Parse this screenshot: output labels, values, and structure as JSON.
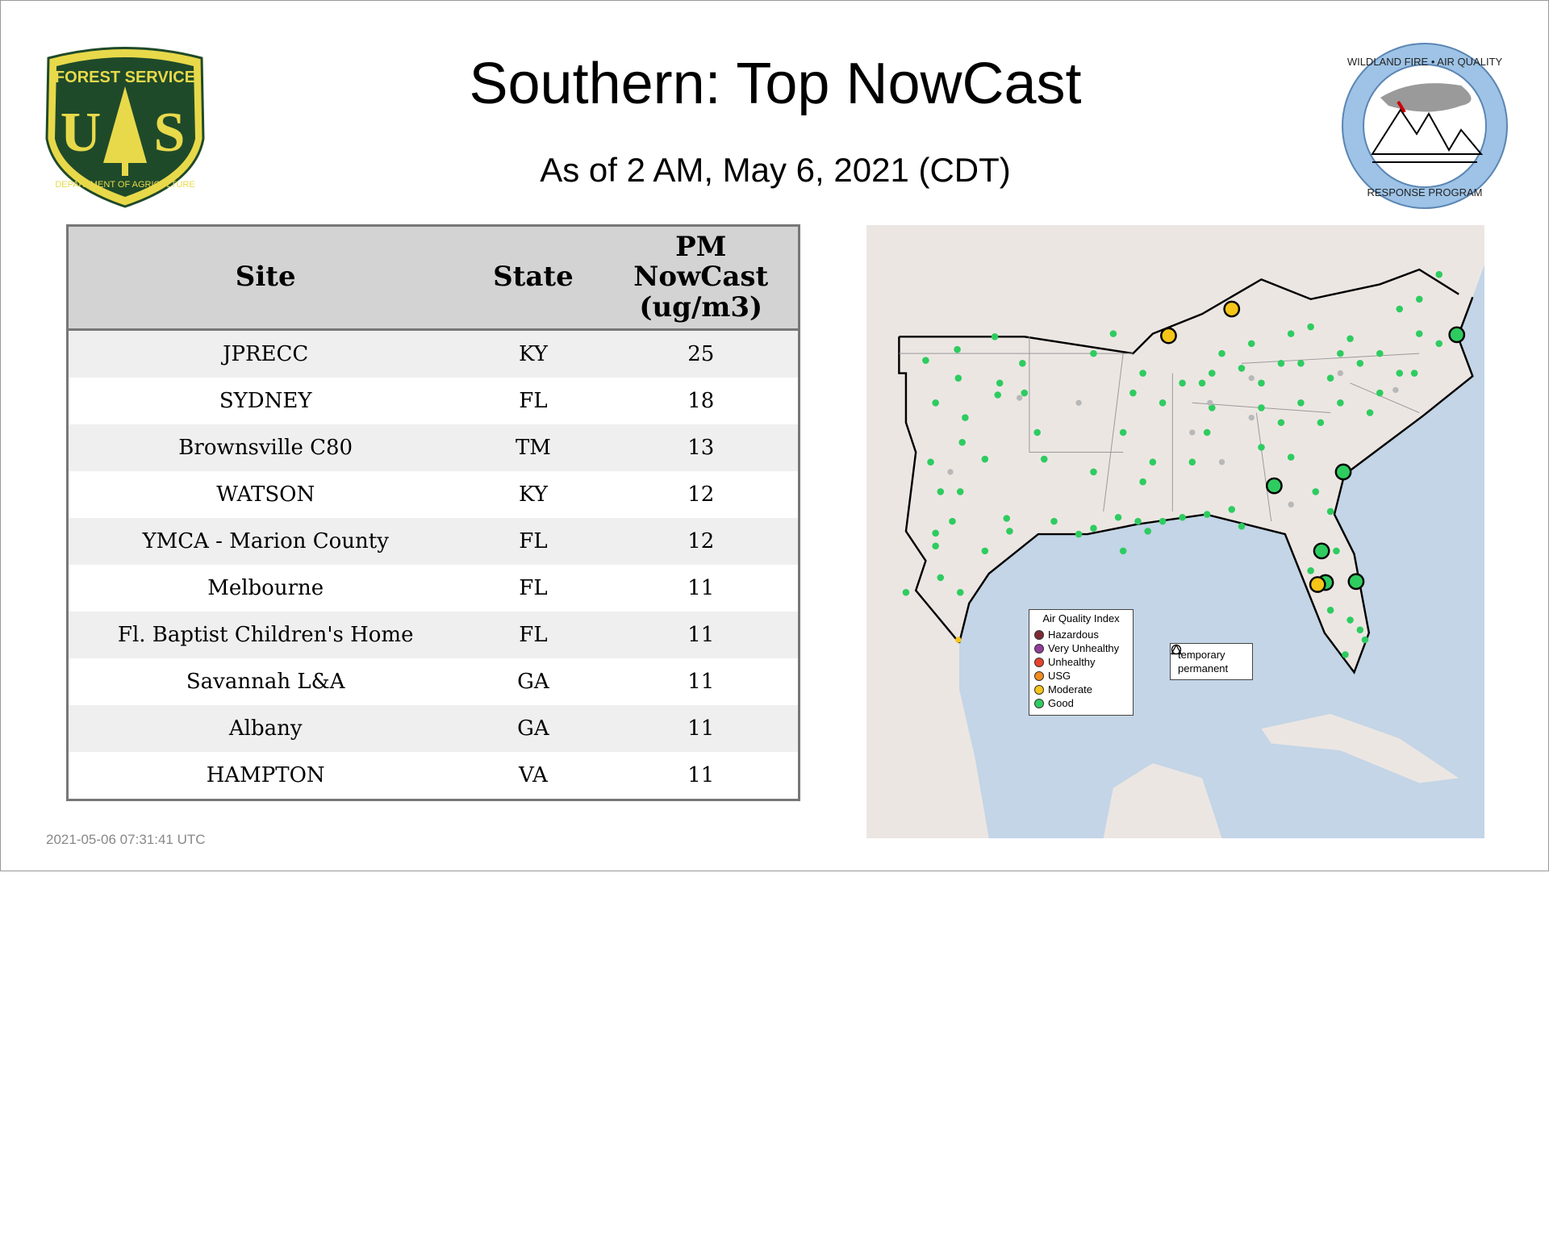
{
  "header": {
    "title": "Southern: Top NowCast",
    "subtitle": "As of  2 AM, May  6, 2021 (CDT)"
  },
  "logos": {
    "left": {
      "text_top": "FOREST SERVICE",
      "letters": "US",
      "text_bottom": "DEPARTMENT OF AGRICULTURE"
    },
    "right": {
      "text_top": "WILDLAND FIRE • AIR QUALITY",
      "text_bottom": "RESPONSE PROGRAM"
    }
  },
  "table": {
    "columns": [
      "Site",
      "State",
      "PM NowCast (ug/m3)"
    ],
    "rows": [
      {
        "site": "JPRECC",
        "state": "KY",
        "value": "25"
      },
      {
        "site": "SYDNEY",
        "state": "FL",
        "value": "18"
      },
      {
        "site": "Brownsville C80",
        "state": "TM",
        "value": "13"
      },
      {
        "site": "WATSON",
        "state": "KY",
        "value": "12"
      },
      {
        "site": "YMCA - Marion County",
        "state": "FL",
        "value": "12"
      },
      {
        "site": "Melbourne",
        "state": "FL",
        "value": "11"
      },
      {
        "site": "Fl. Baptist Children's Home",
        "state": "FL",
        "value": "11"
      },
      {
        "site": "Savannah L&A",
        "state": "GA",
        "value": "11"
      },
      {
        "site": "Albany",
        "state": "GA",
        "value": "11"
      },
      {
        "site": "HAMPTON",
        "state": "VA",
        "value": "11"
      }
    ]
  },
  "map": {
    "legend": {
      "title": "Air Quality Index",
      "items": [
        {
          "label": "Hazardous",
          "color": "#7e2a34"
        },
        {
          "label": "Very Unhealthy",
          "color": "#8f3f97"
        },
        {
          "label": "Unhealthy",
          "color": "#e8412c"
        },
        {
          "label": "USG",
          "color": "#f28c1d"
        },
        {
          "label": "Moderate",
          "color": "#f5c518"
        },
        {
          "label": "Good",
          "color": "#2ecc60"
        }
      ]
    },
    "shape_legend": [
      {
        "label": "temporary",
        "icon": "circle-icon"
      },
      {
        "label": "permanent",
        "icon": "triangle-icon"
      }
    ],
    "colors": {
      "land": "#ece6e3",
      "water": "#c3d5e6",
      "good": "#2ecc60",
      "moderate": "#f5c518",
      "inactive": "#b8b8b8"
    }
  },
  "timestamp": "2021-05-06 07:31:41 UTC"
}
